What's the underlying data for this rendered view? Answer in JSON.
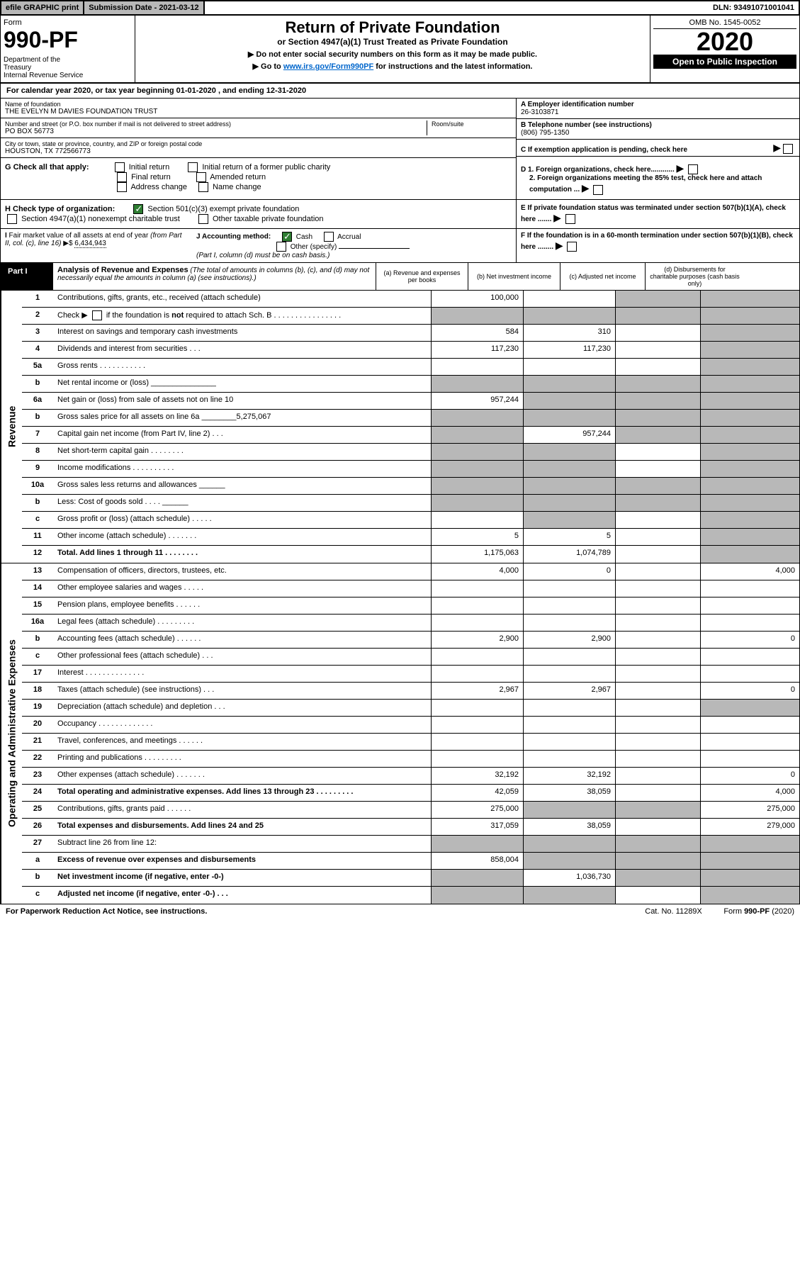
{
  "topbar": {
    "efile": "efile GRAPHIC print",
    "subdate": "Submission Date - 2021-03-12",
    "dln": "DLN: 93491071001041"
  },
  "header": {
    "form_label": "Form",
    "form_num": "990-PF",
    "dept": "Department of the Treasury\nInternal Revenue Service",
    "title": "Return of Private Foundation",
    "subtitle": "or Section 4947(a)(1) Trust Treated as Private Foundation",
    "note1": "▶ Do not enter social security numbers on this form as it may be made public.",
    "note2_pre": "▶ Go to ",
    "note2_link": "www.irs.gov/Form990PF",
    "note2_post": " for instructions and the latest information.",
    "omb": "OMB No. 1545-0052",
    "year": "2020",
    "open_pub": "Open to Public Inspection"
  },
  "calyear": "For calendar year 2020, or tax year beginning 01-01-2020                         , and ending 12-31-2020",
  "info": {
    "name_lbl": "Name of foundation",
    "name": "THE EVELYN M DAVIES FOUNDATION TRUST",
    "addr_lbl": "Number and street (or P.O. box number if mail is not delivered to street address)",
    "room_lbl": "Room/suite",
    "addr": "PO BOX 56773",
    "city_lbl": "City or town, state or province, country, and ZIP or foreign postal code",
    "city": "HOUSTON, TX  772566773",
    "ein_lbl": "A Employer identification number",
    "ein": "26-3103871",
    "tel_lbl": "B Telephone number (see instructions)",
    "tel": "(806) 795-1350",
    "c_lbl": "C If exemption application is pending, check here",
    "d1": "D 1. Foreign organizations, check here............",
    "d2": "2. Foreign organizations meeting the 85% test, check here and attach computation ...",
    "e": "E  If private foundation status was terminated under section 507(b)(1)(A), check here .......",
    "f": "F  If the foundation is in a 60-month termination under section 507(b)(1)(B), check here ........"
  },
  "g": {
    "label": "G Check all that apply:",
    "opts": [
      "Initial return",
      "Initial return of a former public charity",
      "Final return",
      "Amended return",
      "Address change",
      "Name change"
    ]
  },
  "h": {
    "label": "H Check type of organization:",
    "opts": [
      "Section 501(c)(3) exempt private foundation",
      "Section 4947(a)(1) nonexempt charitable trust",
      "Other taxable private foundation"
    ]
  },
  "i": {
    "label": "I Fair market value of all assets at end of year (from Part II, col. (c), line 16) ▶$ ",
    "val": "6,434,943"
  },
  "j": {
    "label": "J Accounting method:",
    "cash": "Cash",
    "accrual": "Accrual",
    "other": "Other (specify)",
    "note": "(Part I, column (d) must be on cash basis.)"
  },
  "part1": {
    "label": "Part I",
    "title": "Analysis of Revenue and Expenses",
    "title_note": "(The total of amounts in columns (b), (c), and (d) may not necessarily equal the amounts in column (a) (see instructions).)",
    "col_a": "(a)   Revenue and expenses per books",
    "col_b": "(b)  Net investment income",
    "col_c": "(c)  Adjusted net income",
    "col_d": "(d)  Disbursements for charitable purposes (cash basis only)"
  },
  "side": {
    "revenue": "Revenue",
    "expenses": "Operating and Administrative Expenses"
  },
  "rows_rev": [
    {
      "n": "1",
      "d": "Contributions, gifts, grants, etc., received (attach schedule)",
      "a": "100,000",
      "b": "",
      "c": "grey",
      "dd": "grey"
    },
    {
      "n": "2",
      "d": "Check ▶ ☐ if the foundation is not required to attach Sch. B",
      "a": "grey",
      "b": "grey",
      "c": "grey",
      "dd": "grey",
      "special": "checkbox"
    },
    {
      "n": "3",
      "d": "Interest on savings and temporary cash investments",
      "a": "584",
      "b": "310",
      "c": "",
      "dd": "grey"
    },
    {
      "n": "4",
      "d": "Dividends and interest from securities    .  .  .",
      "a": "117,230",
      "b": "117,230",
      "c": "",
      "dd": "grey"
    },
    {
      "n": "5a",
      "d": "Gross rents     .  .  .  .  .  .  .  .  .  .  .",
      "a": "",
      "b": "",
      "c": "",
      "dd": "grey"
    },
    {
      "n": "b",
      "d": "Net rental income or (loss)  _______________",
      "a": "grey",
      "b": "grey",
      "c": "grey",
      "dd": "grey"
    },
    {
      "n": "6a",
      "d": "Net gain or (loss) from sale of assets not on line 10",
      "a": "957,244",
      "b": "grey",
      "c": "grey",
      "dd": "grey"
    },
    {
      "n": "b",
      "d": "Gross sales price for all assets on line 6a ________5,275,067",
      "a": "grey",
      "b": "grey",
      "c": "grey",
      "dd": "grey"
    },
    {
      "n": "7",
      "d": "Capital gain net income (from Part IV, line 2)   .  .  .",
      "a": "grey",
      "b": "957,244",
      "c": "grey",
      "dd": "grey"
    },
    {
      "n": "8",
      "d": "Net short-term capital gain   .  .  .  .  .  .  .  .",
      "a": "grey",
      "b": "grey",
      "c": "",
      "dd": "grey"
    },
    {
      "n": "9",
      "d": "Income modifications  .  .  .  .  .  .  .  .  .  .",
      "a": "grey",
      "b": "grey",
      "c": "",
      "dd": "grey"
    },
    {
      "n": "10a",
      "d": "Gross sales less returns and allowances  ______",
      "a": "grey",
      "b": "grey",
      "c": "grey",
      "dd": "grey"
    },
    {
      "n": "b",
      "d": "Less: Cost of goods sold      .  .  .  .  ______",
      "a": "grey",
      "b": "grey",
      "c": "grey",
      "dd": "grey"
    },
    {
      "n": "c",
      "d": "Gross profit or (loss) (attach schedule)    .  .  .  .  .",
      "a": "",
      "b": "grey",
      "c": "",
      "dd": "grey"
    },
    {
      "n": "11",
      "d": "Other income (attach schedule)    .  .  .  .  .  .  .",
      "a": "5",
      "b": "5",
      "c": "",
      "dd": "grey"
    },
    {
      "n": "12",
      "d": "Total. Add lines 1 through 11   .  .  .  .  .  .  .  .",
      "a": "1,175,063",
      "b": "1,074,789",
      "c": "",
      "dd": "grey",
      "bold": true
    }
  ],
  "rows_exp": [
    {
      "n": "13",
      "d": "Compensation of officers, directors, trustees, etc.",
      "a": "4,000",
      "b": "0",
      "c": "",
      "dd": "4,000"
    },
    {
      "n": "14",
      "d": "Other employee salaries and wages    .  .  .  .  .",
      "a": "",
      "b": "",
      "c": "",
      "dd": ""
    },
    {
      "n": "15",
      "d": "Pension plans, employee benefits   .  .  .  .  .  .",
      "a": "",
      "b": "",
      "c": "",
      "dd": ""
    },
    {
      "n": "16a",
      "d": "Legal fees (attach schedule)  .  .  .  .  .  .  .  .  .",
      "a": "",
      "b": "",
      "c": "",
      "dd": ""
    },
    {
      "n": "b",
      "d": "Accounting fees (attach schedule)   .  .  .  .  .  .",
      "a": "2,900",
      "b": "2,900",
      "c": "",
      "dd": "0"
    },
    {
      "n": "c",
      "d": "Other professional fees (attach schedule)    .  .  .",
      "a": "",
      "b": "",
      "c": "",
      "dd": ""
    },
    {
      "n": "17",
      "d": "Interest   .  .  .  .  .  .  .  .  .  .  .  .  .  .",
      "a": "",
      "b": "",
      "c": "",
      "dd": ""
    },
    {
      "n": "18",
      "d": "Taxes (attach schedule) (see instructions)     .  .  .",
      "a": "2,967",
      "b": "2,967",
      "c": "",
      "dd": "0"
    },
    {
      "n": "19",
      "d": "Depreciation (attach schedule) and depletion   .  .  .",
      "a": "",
      "b": "",
      "c": "",
      "dd": "grey"
    },
    {
      "n": "20",
      "d": "Occupancy  .  .  .  .  .  .  .  .  .  .  .  .  .",
      "a": "",
      "b": "",
      "c": "",
      "dd": ""
    },
    {
      "n": "21",
      "d": "Travel, conferences, and meetings  .  .  .  .  .  .",
      "a": "",
      "b": "",
      "c": "",
      "dd": ""
    },
    {
      "n": "22",
      "d": "Printing and publications  .  .  .  .  .  .  .  .  .",
      "a": "",
      "b": "",
      "c": "",
      "dd": ""
    },
    {
      "n": "23",
      "d": "Other expenses (attach schedule)   .  .  .  .  .  .  .",
      "a": "32,192",
      "b": "32,192",
      "c": "",
      "dd": "0"
    },
    {
      "n": "24",
      "d": "Total operating and administrative expenses. Add lines 13 through 23   .  .  .  .  .  .  .  .  .",
      "a": "42,059",
      "b": "38,059",
      "c": "",
      "dd": "4,000",
      "bold": true
    },
    {
      "n": "25",
      "d": "Contributions, gifts, grants paid      .  .  .  .  .  .",
      "a": "275,000",
      "b": "grey",
      "c": "grey",
      "dd": "275,000"
    },
    {
      "n": "26",
      "d": "Total expenses and disbursements. Add lines 24 and 25",
      "a": "317,059",
      "b": "38,059",
      "c": "",
      "dd": "279,000",
      "bold": true
    },
    {
      "n": "27",
      "d": "Subtract line 26 from line 12:",
      "a": "grey",
      "b": "grey",
      "c": "grey",
      "dd": "grey"
    },
    {
      "n": "a",
      "d": "Excess of revenue over expenses and disbursements",
      "a": "858,004",
      "b": "grey",
      "c": "grey",
      "dd": "grey",
      "bold": true
    },
    {
      "n": "b",
      "d": "Net investment income (if negative, enter -0-)",
      "a": "grey",
      "b": "1,036,730",
      "c": "grey",
      "dd": "grey",
      "bold": true
    },
    {
      "n": "c",
      "d": "Adjusted net income (if negative, enter -0-)   .  .  .",
      "a": "grey",
      "b": "grey",
      "c": "",
      "dd": "grey",
      "bold": true
    }
  ],
  "footer": {
    "left": "For Paperwork Reduction Act Notice, see instructions.",
    "cat": "Cat. No. 11289X",
    "form": "Form 990-PF (2020)"
  }
}
